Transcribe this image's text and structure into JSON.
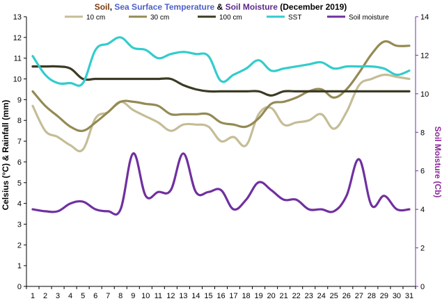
{
  "chart_data": {
    "type": "line",
    "title_parts": [
      {
        "text": "Soil",
        "color": "#7a3b10"
      },
      {
        "text": ", ",
        "color": "#000000"
      },
      {
        "text": "Sea Surface Temperature",
        "color": "#4e60c8"
      },
      {
        "text": " & ",
        "color": "#000000"
      },
      {
        "text": "Soil Moisture",
        "color": "#5b2a8a"
      },
      {
        "text": " (December 2019)",
        "color": "#000000"
      }
    ],
    "ylabel": "Celsius (°C) & Rainfall (mm)",
    "ylabel_color": "#000000",
    "y2label": "Soil Moisture (Cb)",
    "y2label_color": "#8b2a9a",
    "ylim": [
      0,
      13
    ],
    "y2lim": [
      0,
      14
    ],
    "x": [
      1,
      2,
      3,
      4,
      5,
      6,
      7,
      8,
      9,
      10,
      11,
      12,
      13,
      14,
      15,
      16,
      17,
      18,
      19,
      20,
      21,
      22,
      23,
      24,
      25,
      26,
      27,
      28,
      29,
      30,
      31
    ],
    "series": [
      {
        "name": "10 cm",
        "color": "#c4bd97",
        "axis": "left",
        "values": [
          8.7,
          7.5,
          7.2,
          6.8,
          6.6,
          8.1,
          8.4,
          8.9,
          8.5,
          8.2,
          7.9,
          7.5,
          7.8,
          7.8,
          7.7,
          7.0,
          7.2,
          6.8,
          8.3,
          8.6,
          7.8,
          7.9,
          8.0,
          8.3,
          7.6,
          8.4,
          9.7,
          10.0,
          10.2,
          10.1,
          10.0
        ]
      },
      {
        "name": "30 cm",
        "color": "#948a54",
        "axis": "left",
        "values": [
          9.4,
          8.7,
          8.2,
          7.7,
          7.5,
          7.9,
          8.4,
          8.9,
          8.9,
          8.8,
          8.7,
          8.3,
          8.3,
          8.3,
          8.3,
          7.9,
          7.8,
          7.7,
          8.1,
          8.8,
          8.9,
          9.1,
          9.4,
          9.5,
          9.1,
          9.5,
          10.3,
          11.2,
          11.8,
          11.6,
          11.6
        ]
      },
      {
        "name": "100 cm",
        "color": "#3b3b24",
        "axis": "left",
        "values": [
          10.6,
          10.6,
          10.6,
          10.5,
          10.0,
          10.0,
          10.0,
          10.0,
          10.0,
          10.0,
          10.0,
          10.0,
          9.7,
          9.5,
          9.4,
          9.4,
          9.4,
          9.4,
          9.4,
          9.2,
          9.4,
          9.4,
          9.4,
          9.4,
          9.4,
          9.4,
          9.4,
          9.4,
          9.4,
          9.4,
          9.4
        ]
      },
      {
        "name": "SST",
        "color": "#33cccc",
        "axis": "left",
        "values": [
          11.1,
          10.2,
          9.8,
          9.8,
          9.8,
          11.4,
          11.7,
          12.0,
          11.5,
          11.4,
          11.0,
          11.2,
          11.3,
          11.2,
          11.1,
          9.9,
          10.2,
          10.5,
          10.9,
          10.4,
          10.5,
          10.6,
          10.7,
          10.8,
          10.5,
          10.6,
          10.6,
          10.6,
          10.5,
          10.2,
          10.4
        ]
      },
      {
        "name": "Soil moisture",
        "color": "#7030a0",
        "axis": "right",
        "values": [
          4.0,
          3.9,
          3.9,
          4.3,
          4.4,
          4.0,
          3.9,
          4.0,
          6.9,
          4.7,
          4.9,
          5.0,
          6.9,
          4.9,
          4.9,
          5.0,
          4.0,
          4.5,
          5.4,
          5.0,
          4.5,
          4.5,
          4.0,
          4.0,
          3.9,
          4.7,
          6.6,
          4.2,
          4.7,
          4.0,
          4.0
        ]
      }
    ],
    "legend_position": "top",
    "grid": false,
    "background": "#ffffff"
  }
}
